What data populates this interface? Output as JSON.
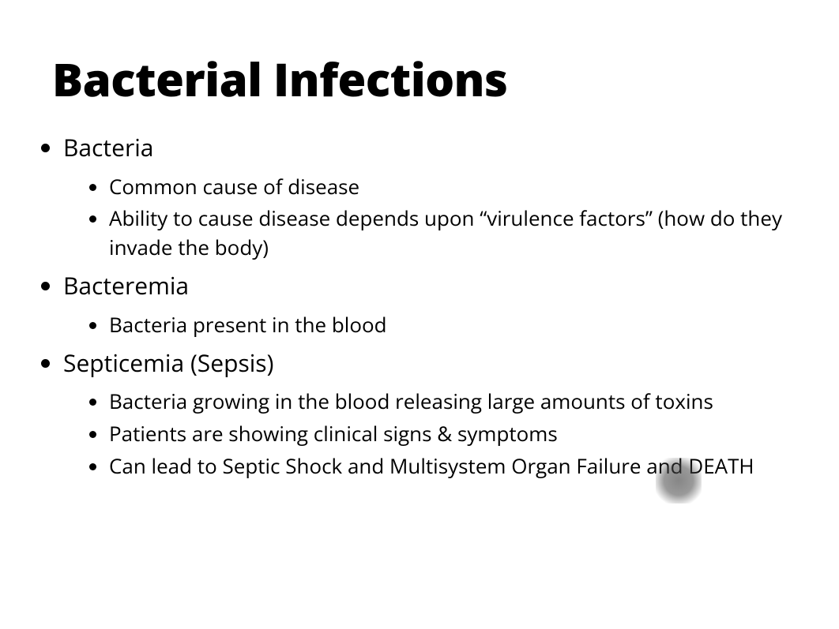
{
  "slide": {
    "title": "Bacterial Infections",
    "title_fontsize": 58,
    "title_fontweight": 800,
    "body_font_color": "#000000",
    "background_color": "#ffffff",
    "bullets": [
      {
        "text": "Bacteria",
        "fontsize": 30,
        "children": [
          {
            "text": "Common cause of disease",
            "fontsize": 26
          },
          {
            "text": "Ability to cause disease depends upon “virulence factors” (how do they invade the body)",
            "fontsize": 26
          }
        ]
      },
      {
        "text": "Bacteremia",
        "fontsize": 30,
        "children": [
          {
            "text": "Bacteria present in the blood",
            "fontsize": 26
          }
        ]
      },
      {
        "text": "Septicemia (Sepsis)",
        "fontsize": 30,
        "children": [
          {
            "text": "Bacteria growing in the blood releasing large amounts of toxins",
            "fontsize": 26
          },
          {
            "text": "Patients are showing clinical signs & symptoms",
            "fontsize": 26
          },
          {
            "text": "Can lead to Septic Shock and Multisystem Organ Failure and DEATH",
            "fontsize": 26
          }
        ]
      }
    ]
  }
}
